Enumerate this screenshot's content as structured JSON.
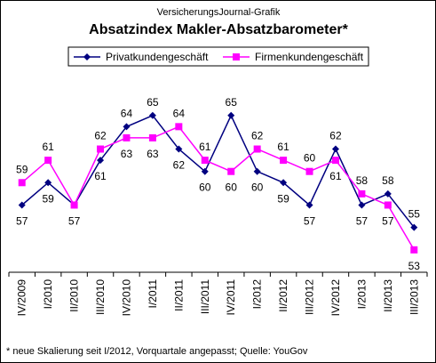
{
  "header": {
    "source": "VersicherungsJournal-Grafik",
    "title": "Absatzindex Makler-Absatzbarometer*"
  },
  "footnote": "* neue Skalierung seit I/2012, Vorquartale angepasst; Quelle: YouGov",
  "chart_data": {
    "type": "line",
    "title": "Absatzindex Makler-Absatzbarometer*",
    "categories": [
      "IV/2009",
      "I/2010",
      "II/2010",
      "III/2010",
      "IV/2010",
      "I/2011",
      "II/2011",
      "III/2011",
      "IV/2011",
      "I/2012",
      "II/2012",
      "III/2012",
      "IV/2012",
      "I/2013",
      "II/2013",
      "III/2013"
    ],
    "series": [
      {
        "name": "Privatkundengeschäft",
        "values": [
          57,
          59,
          57,
          61,
          64,
          65,
          62,
          60,
          65,
          60,
          59,
          57,
          62,
          57,
          58,
          55
        ],
        "color": "#000080",
        "marker": "diamond"
      },
      {
        "name": "Firmenkundengeschäft",
        "values": [
          59,
          61,
          57,
          62,
          63,
          63,
          64,
          61,
          60,
          62,
          61,
          60,
          61,
          58,
          57,
          53
        ],
        "color": "#ff00ff",
        "marker": "square"
      }
    ],
    "ylim": [
      51,
      68
    ],
    "grid": false,
    "legend_position": "top"
  }
}
